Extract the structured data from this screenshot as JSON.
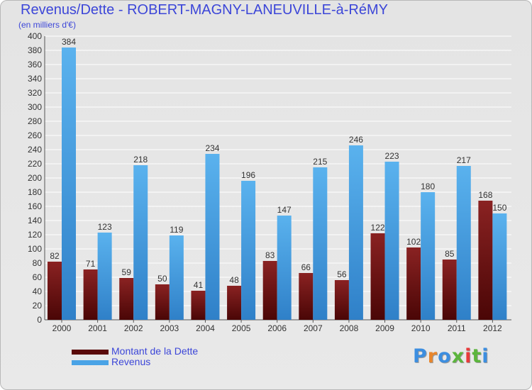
{
  "header": {
    "title": "Revenus/Dette - ROBERT-MAGNY-LANEUVILLE-à-RéMY",
    "subtitle": "(en milliers d'€)"
  },
  "colors": {
    "title": "#3c46d8",
    "dette": "#7a1414",
    "revenus": "#4aa3e6",
    "grid": "#ffffff",
    "axis_text": "#333333"
  },
  "legend": [
    {
      "label": "Montant de la Dette",
      "color": "#5a0a0a"
    },
    {
      "label": "Revenus",
      "color": "#4aa3e6"
    }
  ],
  "logo": {
    "text": "Proxiti",
    "letter_colors": [
      "#3c8ee0",
      "#e8862c",
      "#3c8ee0",
      "#5bb53c",
      "#e83a3a",
      "#5bb53c",
      "#3c8ee0"
    ]
  },
  "chart_data": {
    "type": "bar",
    "categories": [
      "2000",
      "2001",
      "2002",
      "2003",
      "2004",
      "2005",
      "2006",
      "2007",
      "2008",
      "2009",
      "2010",
      "2011",
      "2012"
    ],
    "series": [
      {
        "name": "Montant de la Dette",
        "values": [
          82,
          71,
          59,
          50,
          41,
          48,
          83,
          66,
          56,
          122,
          102,
          85,
          168
        ]
      },
      {
        "name": "Revenus",
        "values": [
          384,
          123,
          218,
          119,
          234,
          196,
          147,
          215,
          246,
          223,
          180,
          217,
          150
        ]
      }
    ],
    "ylim": [
      0,
      400
    ],
    "ytick_step": 20,
    "grid": true,
    "legend_position": "bottom-left"
  }
}
